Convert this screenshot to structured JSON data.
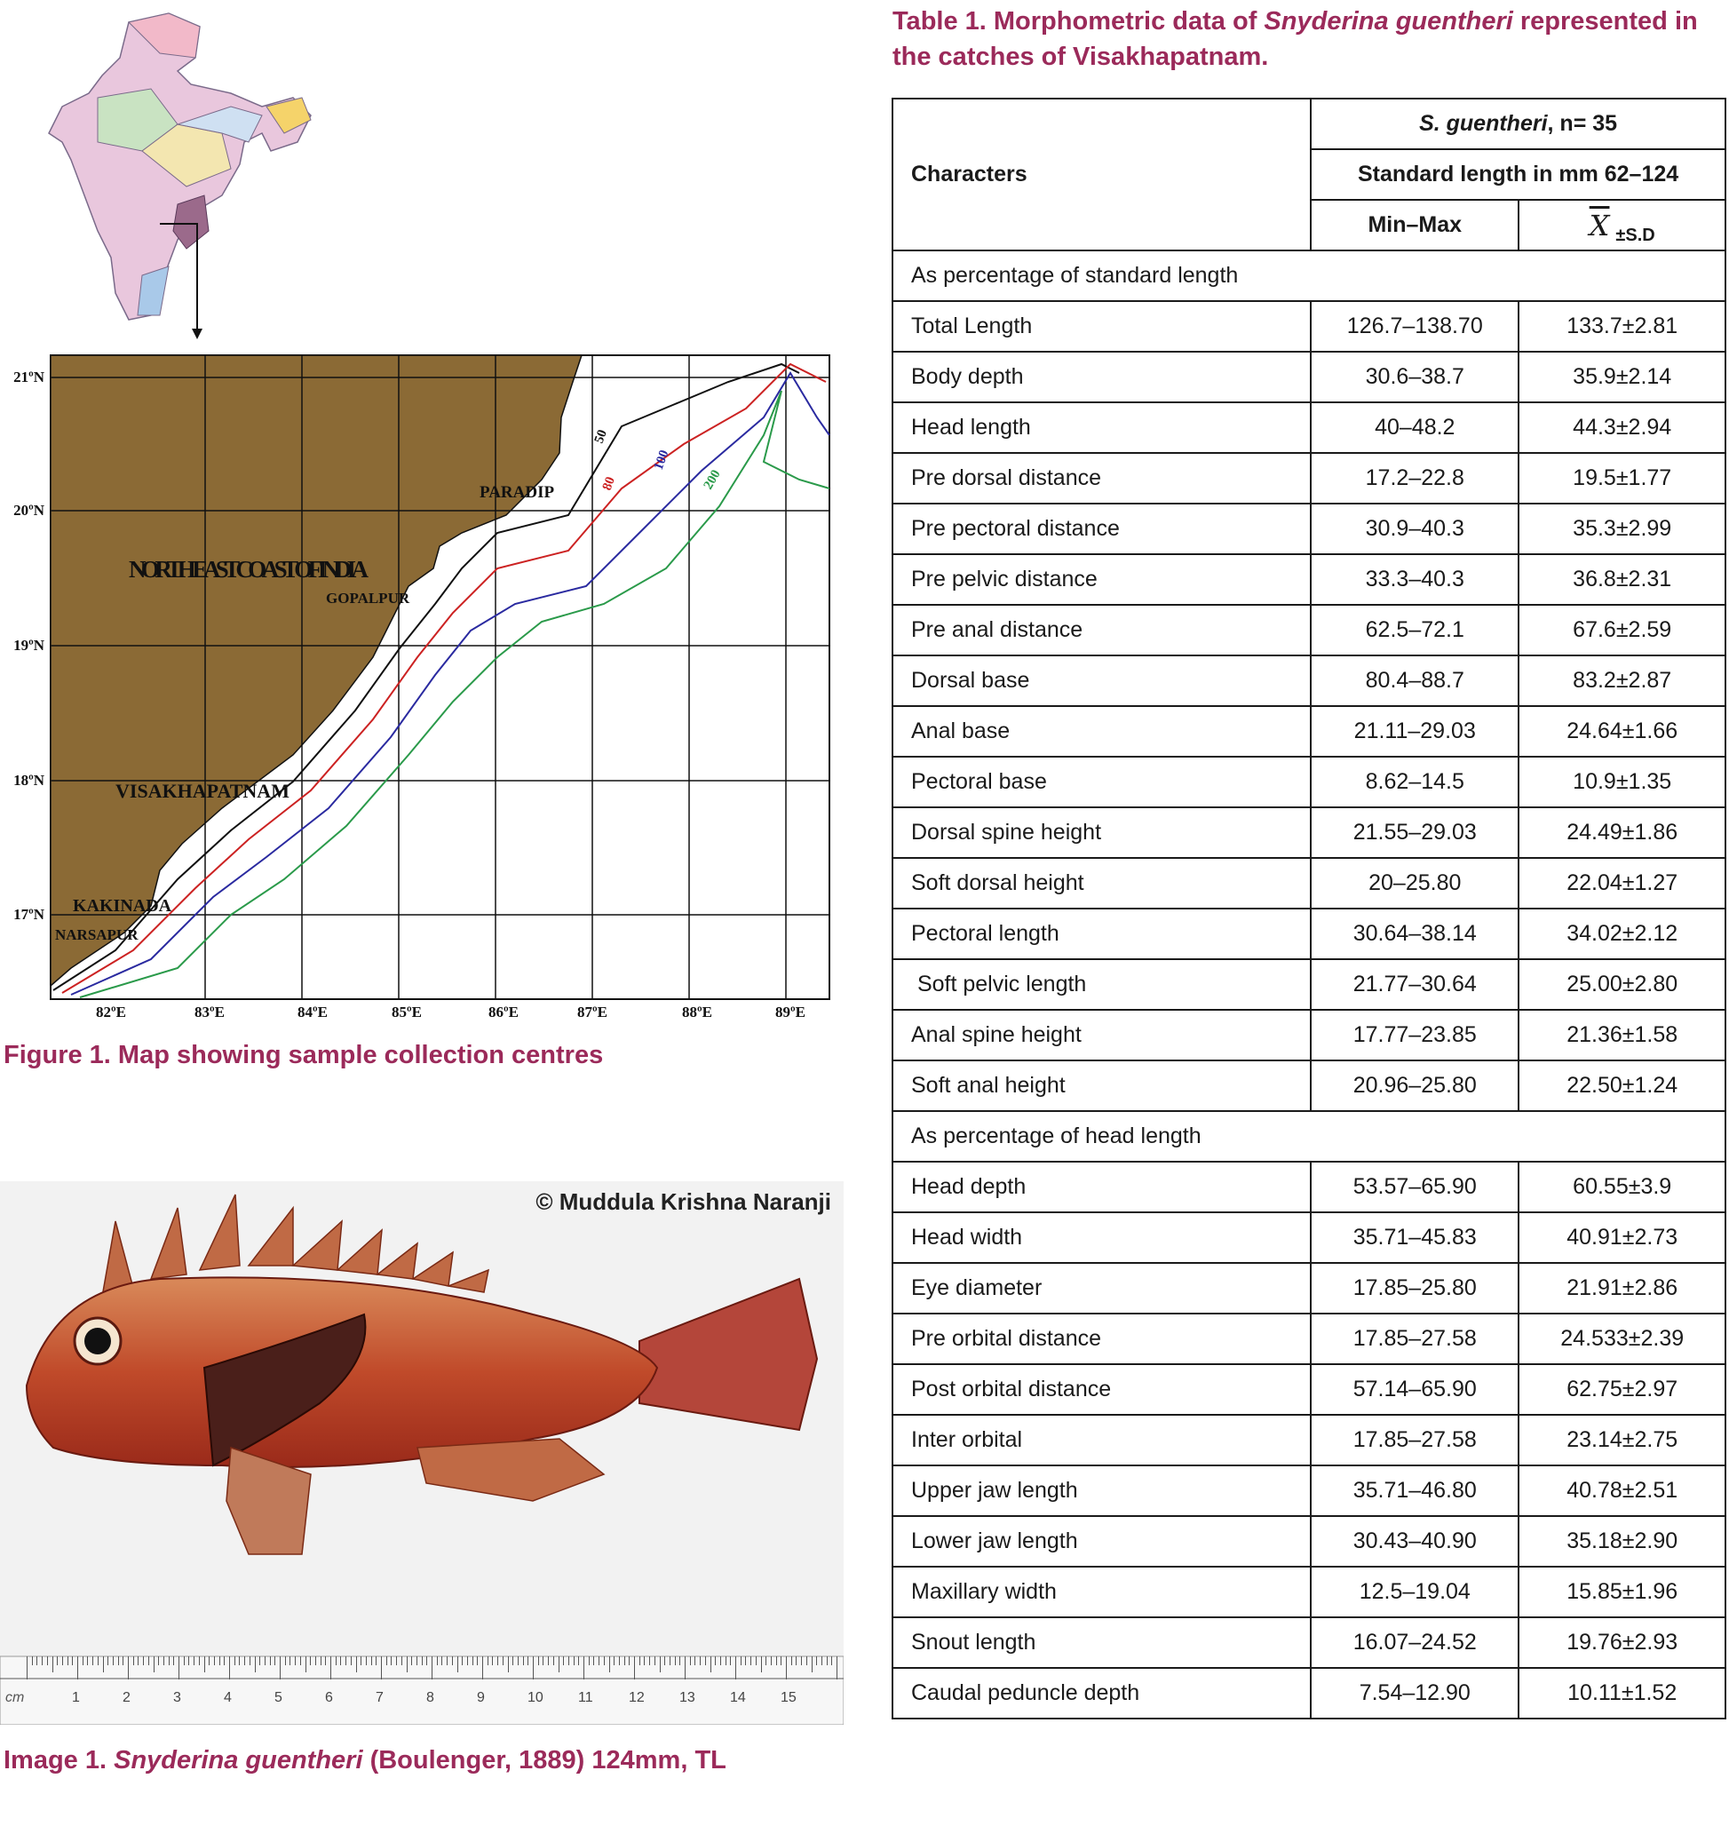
{
  "map": {
    "latitude_labels": [
      "21ºN",
      "20ºN",
      "19ºN",
      "18ºN",
      "17ºN"
    ],
    "longitude_labels": [
      "82ºE",
      "83ºE",
      "84ºE",
      "85ºE",
      "86ºE",
      "87ºE",
      "88ºE",
      "89ºE"
    ],
    "region_title": "NORTH EAST COAST OF INDIA",
    "places": [
      "PARADIP",
      "GOPALPUR",
      "VISAKHAPATNAM",
      "KAKINADA",
      "NARSAPUR"
    ],
    "depth_contours": [
      "50",
      "80",
      "100",
      "200"
    ],
    "colors": {
      "land": "#8b6a35",
      "contour_50": "#111111",
      "contour_80": "#cc2222",
      "contour_100": "#2a2aa0",
      "contour_200": "#2a9a4a"
    }
  },
  "figure1": {
    "caption": "Figure 1. Map showing sample collection centres"
  },
  "image1": {
    "credit": "© Muddula Krishna Naranji",
    "caption_prefix": "Image 1.",
    "caption_species": "Snyderina guentheri",
    "caption_suffix": "(Boulenger, 1889) 124mm, TL",
    "ruler_unit": "cm",
    "ruler_numbers": [
      "1",
      "2",
      "3",
      "4",
      "5",
      "6",
      "7",
      "8",
      "9",
      "10",
      "11",
      "12",
      "13",
      "14",
      "15"
    ]
  },
  "table1": {
    "caption_prefix": "Table 1. Morphometric data of",
    "caption_species": "Snyderina guentheri",
    "caption_suffix": "represented in the catches of Visakhapatnam.",
    "header_characters": "Characters",
    "header_species": "S. guentheri",
    "header_n": ", n= 35",
    "header_range": "Standard length in mm 62–124",
    "header_minmax": "Min–Max",
    "header_mean_symbol": "X",
    "header_sd": "±S.D",
    "section1": "As percentage of standard length",
    "rows1": [
      [
        "Total Length",
        "126.7–138.70",
        "133.7±2.81"
      ],
      [
        "Body depth",
        "30.6–38.7",
        "35.9±2.14"
      ],
      [
        "Head length",
        "40–48.2",
        "44.3±2.94"
      ],
      [
        "Pre dorsal distance",
        "17.2–22.8",
        "19.5±1.77"
      ],
      [
        "Pre pectoral distance",
        "30.9–40.3",
        "35.3±2.99"
      ],
      [
        "Pre pelvic distance",
        "33.3–40.3",
        "36.8±2.31"
      ],
      [
        "Pre anal distance",
        "62.5–72.1",
        "67.6±2.59"
      ],
      [
        "Dorsal base",
        "80.4–88.7",
        "83.2±2.87"
      ],
      [
        "Anal base",
        "21.11–29.03",
        "24.64±1.66"
      ],
      [
        "Pectoral base",
        "8.62–14.5",
        "10.9±1.35"
      ],
      [
        "Dorsal spine height",
        "21.55–29.03",
        "24.49±1.86"
      ],
      [
        "Soft dorsal height",
        "20–25.80",
        "22.04±1.27"
      ],
      [
        "Pectoral length",
        "30.64–38.14",
        "34.02±2.12"
      ],
      [
        " Soft pelvic length",
        "21.77–30.64",
        "25.00±2.80"
      ],
      [
        "Anal spine height",
        "17.77–23.85",
        "21.36±1.58"
      ],
      [
        "Soft anal height",
        "20.96–25.80",
        "22.50±1.24"
      ]
    ],
    "section2": "As percentage of head length",
    "rows2": [
      [
        "Head depth",
        "53.57–65.90",
        "60.55±3.9"
      ],
      [
        "Head width",
        "35.71–45.83",
        "40.91±2.73"
      ],
      [
        "Eye diameter",
        "17.85–25.80",
        "21.91±2.86"
      ],
      [
        "Pre orbital distance",
        "17.85–27.58",
        "24.533±2.39"
      ],
      [
        "Post orbital distance",
        "57.14–65.90",
        "62.75±2.97"
      ],
      [
        "Inter orbital",
        "17.85–27.58",
        "23.14±2.75"
      ],
      [
        "Upper jaw length",
        "35.71–46.80",
        "40.78±2.51"
      ],
      [
        "Lower jaw length",
        "30.43–40.90",
        "35.18±2.90"
      ],
      [
        "Maxillary width",
        "12.5–19.04",
        "15.85±1.96"
      ],
      [
        "Snout length",
        "16.07–24.52",
        "19.76±2.93"
      ],
      [
        "Caudal peduncle depth",
        "7.54–12.90",
        "10.11±1.52"
      ]
    ]
  }
}
